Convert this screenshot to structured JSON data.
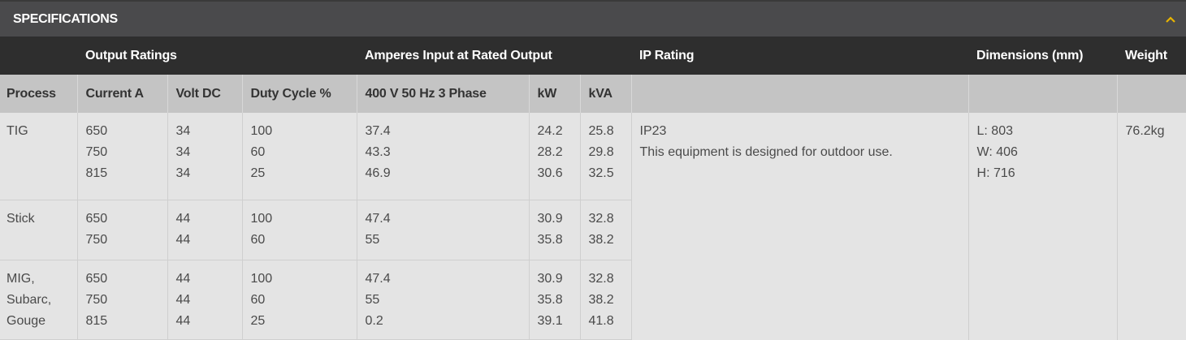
{
  "header": {
    "title": "SPECIFICATIONS",
    "toggle_icon": "chevron-up-icon",
    "accent": "#e8b400"
  },
  "groups": {
    "output_ratings": "Output Ratings",
    "amperes_input": "Amperes Input at Rated Output",
    "ip_rating": "IP Rating",
    "dimensions": "Dimensions (mm)",
    "weight": "Weight"
  },
  "columns": {
    "process": "Process",
    "current": "Current A",
    "volt": "Volt DC",
    "duty": "Duty Cycle %",
    "phase": "400 V 50 Hz 3 Phase",
    "kw": "kW",
    "kva": "kVA"
  },
  "rows": [
    {
      "process": [
        "TIG"
      ],
      "current": [
        "650",
        "750",
        "815"
      ],
      "volt": [
        "34",
        "34",
        "34"
      ],
      "duty": [
        "100",
        "60",
        "25"
      ],
      "phase": [
        "37.4",
        "43.3",
        "46.9"
      ],
      "kw": [
        "24.2",
        "28.2",
        "30.6"
      ],
      "kva": [
        "25.8",
        "29.8",
        "32.5"
      ]
    },
    {
      "process": [
        "Stick"
      ],
      "current": [
        "650",
        "750"
      ],
      "volt": [
        "44",
        "44"
      ],
      "duty": [
        "100",
        "60"
      ],
      "phase": [
        "47.4",
        "55"
      ],
      "kw": [
        "30.9",
        "35.8"
      ],
      "kva": [
        "32.8",
        "38.2"
      ]
    },
    {
      "process": [
        "MIG,",
        "Subarc,",
        "Gouge"
      ],
      "current": [
        "650",
        "750",
        "815"
      ],
      "volt": [
        "44",
        "44",
        "44"
      ],
      "duty": [
        "100",
        "60",
        "25"
      ],
      "phase": [
        "47.4",
        "55",
        "0.2"
      ],
      "kw": [
        "30.9",
        "35.8",
        "39.1"
      ],
      "kva": [
        "32.8",
        "38.2",
        "41.8"
      ]
    }
  ],
  "ip": {
    "rating": "IP23",
    "note": "This equipment is designed for outdoor use."
  },
  "dimensions": [
    "L: 803",
    "W: 406",
    "H: 716"
  ],
  "weight": "76.2kg"
}
